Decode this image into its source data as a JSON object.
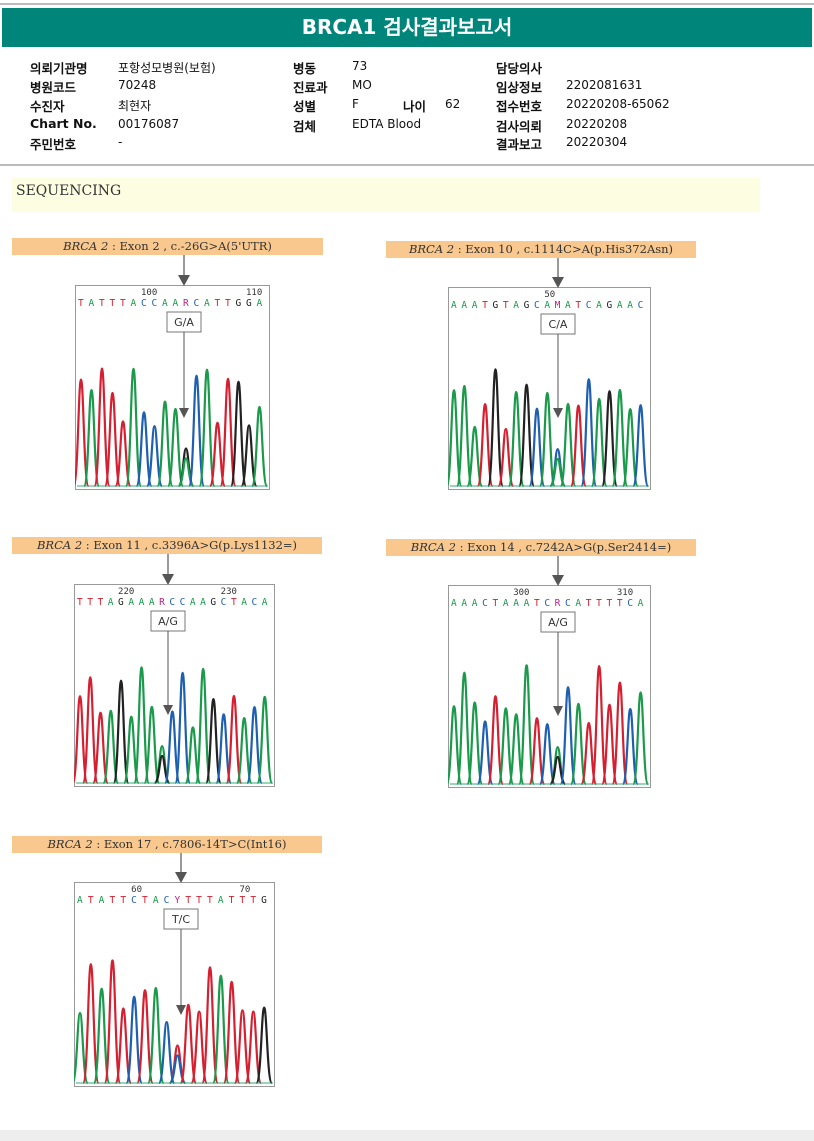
{
  "header": {
    "title": "BRCA1 검사결과보고서"
  },
  "info": {
    "col1": [
      {
        "label": "의뢰기관명",
        "value": "포항성모병원(보험)"
      },
      {
        "label": "병원코드",
        "value": "70248"
      },
      {
        "label": "수진자",
        "value": "최현자"
      },
      {
        "label": "Chart No.",
        "value": "00176087"
      },
      {
        "label": "주민번호",
        "value": "-"
      }
    ],
    "col2": [
      {
        "label": "병동",
        "value": "73"
      },
      {
        "label": "진료과",
        "value": "MO"
      },
      {
        "label": "성별",
        "value": "F"
      },
      {
        "label": "검체",
        "value": "EDTA Blood"
      }
    ],
    "age": {
      "label": "나이",
      "value": "62"
    },
    "col3": [
      {
        "label": "담당의사",
        "value": ""
      },
      {
        "label": "임상정보",
        "value": "2202081631"
      },
      {
        "label": "접수번호",
        "value": "20220208-65062"
      },
      {
        "label": "검사의뢰",
        "value": "20220208"
      },
      {
        "label": "결과보고",
        "value": "20220304"
      }
    ]
  },
  "section": {
    "title": "SEQUENCING"
  },
  "colors": {
    "A": "#1a9a4a",
    "C": "#1f5fb0",
    "G": "#222222",
    "T": "#d42030"
  },
  "panels": [
    {
      "gene": "BRCA 2",
      "desc": " : Exon 2 , c.-26G>A(5'UTR)",
      "sequence": "TATTTACCAARCATTGGA",
      "positions": [
        "100",
        "110"
      ],
      "call": "G/A"
    },
    {
      "gene": "BRCA 2",
      "desc": " : Exon 10 , c.1114C>A(p.His372Asn)",
      "sequence": "AAATGTAGCAMATCAGAAC",
      "positions": [
        "50"
      ],
      "call": "C/A"
    },
    {
      "gene": "BRCA 2",
      "desc": " : Exon 11 , c.3396A>G(p.Lys1132=)",
      "sequence": "TTTAGAAARCCAAGCTACA",
      "positions": [
        "220",
        "230"
      ],
      "call": "A/G"
    },
    {
      "gene": "BRCA 2",
      "desc": " : Exon 14 , c.7242A>G(p.Ser2414=)",
      "sequence": "AAACTAAATCRCATTTTCA",
      "positions": [
        "300",
        "310"
      ],
      "call": "A/G"
    },
    {
      "gene": "BRCA 2",
      "desc": " : Exon 17 , c.7806-14T>C(Int16)",
      "sequence": "ATATTCTACYTTTATTTG",
      "positions": [
        "60",
        "70"
      ],
      "call": "T/C"
    }
  ]
}
